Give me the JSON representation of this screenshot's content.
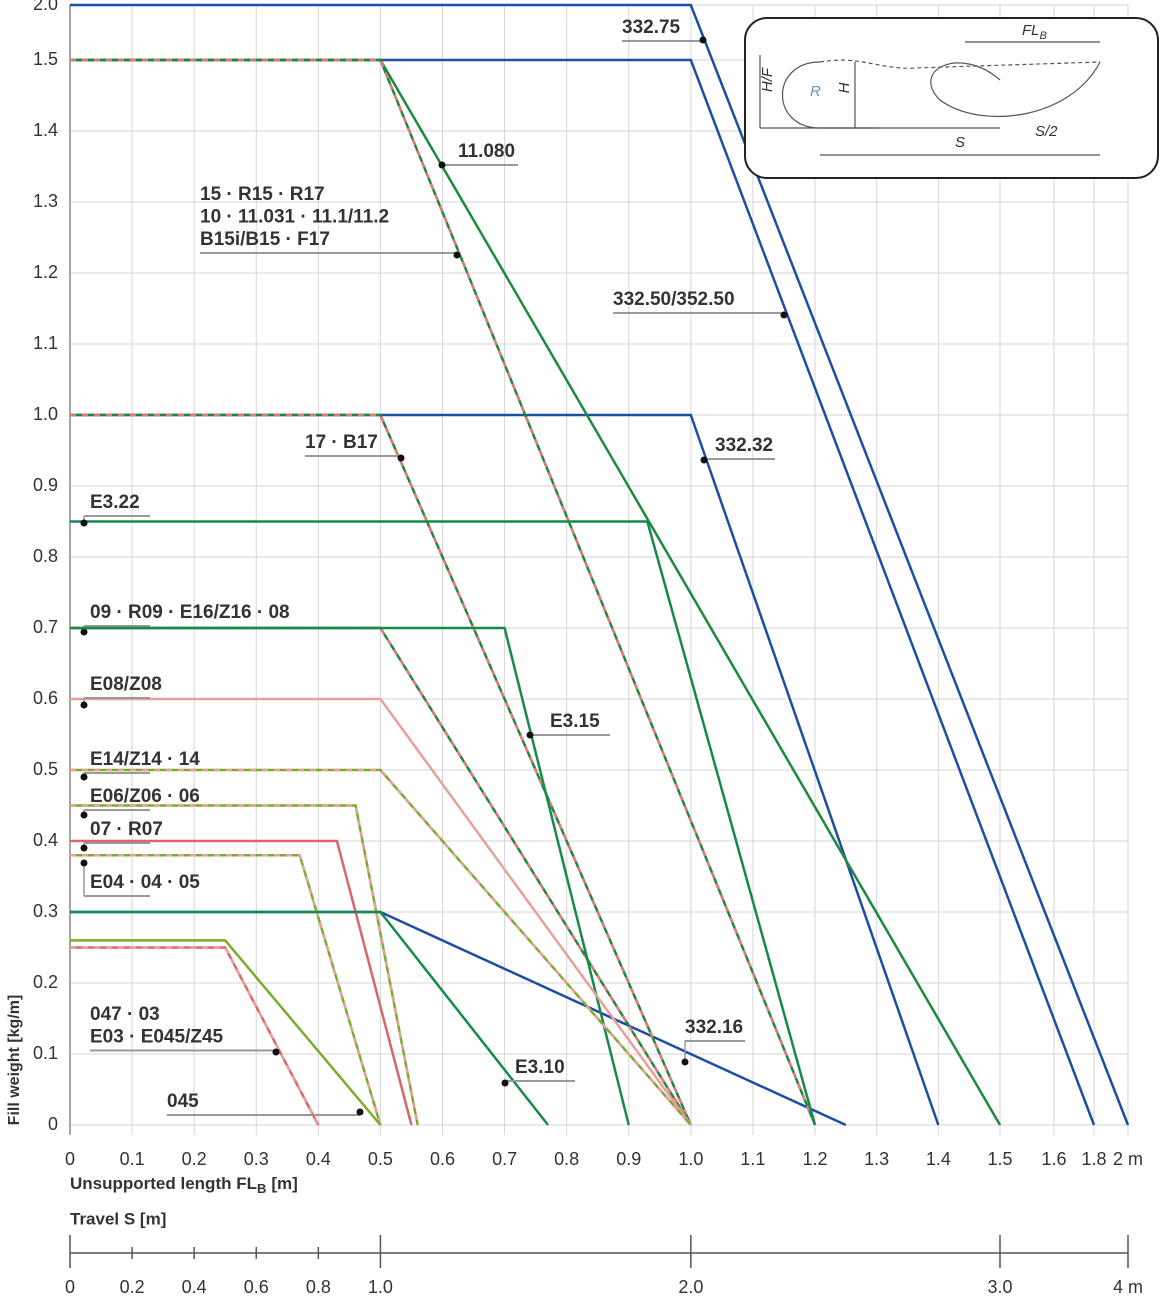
{
  "chart_data": {
    "type": "line",
    "y_label": "Fill weight [kg/m]",
    "x_label": "Unsupported length FL",
    "x_label_sub": "B",
    "x_label_unit": "[m]",
    "xlim": [
      0,
      2
    ],
    "xticks": [
      0,
      0.1,
      0.2,
      0.3,
      0.4,
      0.5,
      0.6,
      0.7,
      0.8,
      0.9,
      {
        "value": 1,
        "label": "1.0"
      },
      1.1,
      1.2,
      1.3,
      1.4,
      1.5,
      1.6,
      1.8,
      {
        "value": 2,
        "label": "2 m"
      }
    ],
    "ylim": [
      0,
      2
    ],
    "yticks": [
      0,
      0.1,
      0.2,
      0.3,
      0.4,
      0.5,
      0.6,
      0.7,
      0.8,
      0.9,
      {
        "value": 1,
        "label": "1.0"
      },
      1.1,
      1.2,
      1.3,
      1.4,
      1.5,
      {
        "value": 2,
        "label": "2.0"
      }
    ],
    "grid": true,
    "travel_label": "Travel S [m]",
    "travel_ticks": [
      0,
      0.2,
      0.4,
      0.6,
      0.8,
      {
        "value": 1,
        "label": "1.0"
      },
      {
        "value": 2,
        "label": "2.0"
      },
      {
        "value": 3,
        "label": "3.0"
      },
      {
        "value": 4,
        "label": "4 m"
      }
    ],
    "series": [
      {
        "name": "332.75",
        "color": "#1d4ea3",
        "x": [
          0,
          1.0,
          2.0
        ],
        "values": [
          2.0,
          2.0,
          0
        ]
      },
      {
        "name": "332.50/352.50",
        "color": "#1d4ea3",
        "x": [
          0,
          1.0,
          1.8
        ],
        "values": [
          1.5,
          1.5,
          0
        ]
      },
      {
        "name": "332.32",
        "color": "#1d4ea3",
        "x": [
          0,
          1.0,
          1.4
        ],
        "values": [
          1.0,
          1.0,
          0
        ]
      },
      {
        "name": "332.16",
        "color": "#1d4ea3",
        "x": [
          0,
          0.5,
          1.25
        ],
        "values": [
          0.3,
          0.3,
          0
        ]
      },
      {
        "name": "11.080",
        "color": "#1c8a3c",
        "x": [
          0,
          0.5,
          1.5
        ],
        "values": [
          1.5,
          1.5,
          0
        ]
      },
      {
        "name": [
          "15 · R15 · R17",
          "10 · 11.031 · 11.1/11.2",
          "B15i/B15 · F17"
        ],
        "color": "#1c8a3c",
        "dash_color": "#e27a7a",
        "x": [
          0,
          0.5,
          1.2
        ],
        "values": [
          1.5,
          1.5,
          0
        ]
      },
      {
        "name": "17 · B17",
        "color": "#1c8a3c",
        "dash_color": "#e27a7a",
        "x": [
          0,
          0.5,
          1.0
        ],
        "values": [
          1.0,
          1.0,
          0
        ]
      },
      {
        "name": "E3.22",
        "color": "#178a4a",
        "x": [
          0,
          0.93,
          1.2
        ],
        "values": [
          0.85,
          0.85,
          0
        ]
      },
      {
        "name": "09 · R09 · E16/Z16 · 08",
        "color": "#1c8a3c",
        "dash_color": "#e27a7a",
        "x": [
          0,
          0.5,
          1.0
        ],
        "values": [
          0.7,
          0.7,
          0
        ]
      },
      {
        "name": "E3.15",
        "color": "#178a4a",
        "x": [
          0,
          0.7,
          0.9
        ],
        "values": [
          0.7,
          0.7,
          0
        ]
      },
      {
        "name": "E08/Z08",
        "color": "#e8a09a",
        "x": [
          0,
          0.5,
          1.0
        ],
        "values": [
          0.6,
          0.6,
          0
        ]
      },
      {
        "name": "E14/Z14 · 14",
        "color": "#7aac2a",
        "dash_color": "#e8a09a",
        "x": [
          0,
          0.5,
          1.0
        ],
        "values": [
          0.5,
          0.5,
          0
        ]
      },
      {
        "name": "E06/Z06 · 06",
        "color": "#7aac2a",
        "dash_color": "#e8a09a",
        "x": [
          0,
          0.46,
          0.56
        ],
        "values": [
          0.45,
          0.45,
          0
        ]
      },
      {
        "name": "07 · R07",
        "color": "#d9666b",
        "x": [
          0,
          0.43,
          0.55
        ],
        "values": [
          0.4,
          0.4,
          0
        ]
      },
      {
        "name": "E04 · 04 · 05",
        "color": "#7aac2a",
        "dash_color": "#e8a09a",
        "x": [
          0,
          0.37,
          0.5
        ],
        "values": [
          0.38,
          0.38,
          0
        ]
      },
      {
        "name": "E3.10",
        "color": "#178a4a",
        "x": [
          0,
          0.5,
          0.77
        ],
        "values": [
          0.3,
          0.3,
          0
        ]
      },
      {
        "name": [
          "047 · 03",
          "E03 · E045/Z45"
        ],
        "color": "#d9666b",
        "dash_color": "#e8a09a",
        "x": [
          0,
          0.25,
          0.4
        ],
        "values": [
          0.25,
          0.25,
          0
        ]
      },
      {
        "name": "045",
        "color": "#7aac2a",
        "x": [
          0,
          0.25,
          0.5
        ],
        "values": [
          0.26,
          0.26,
          0
        ]
      }
    ]
  },
  "inset": {
    "fl": "FL",
    "fl_sub": "B",
    "hf": "H/F",
    "r": "R",
    "h": "H",
    "s": "S",
    "s2": "S/2"
  }
}
